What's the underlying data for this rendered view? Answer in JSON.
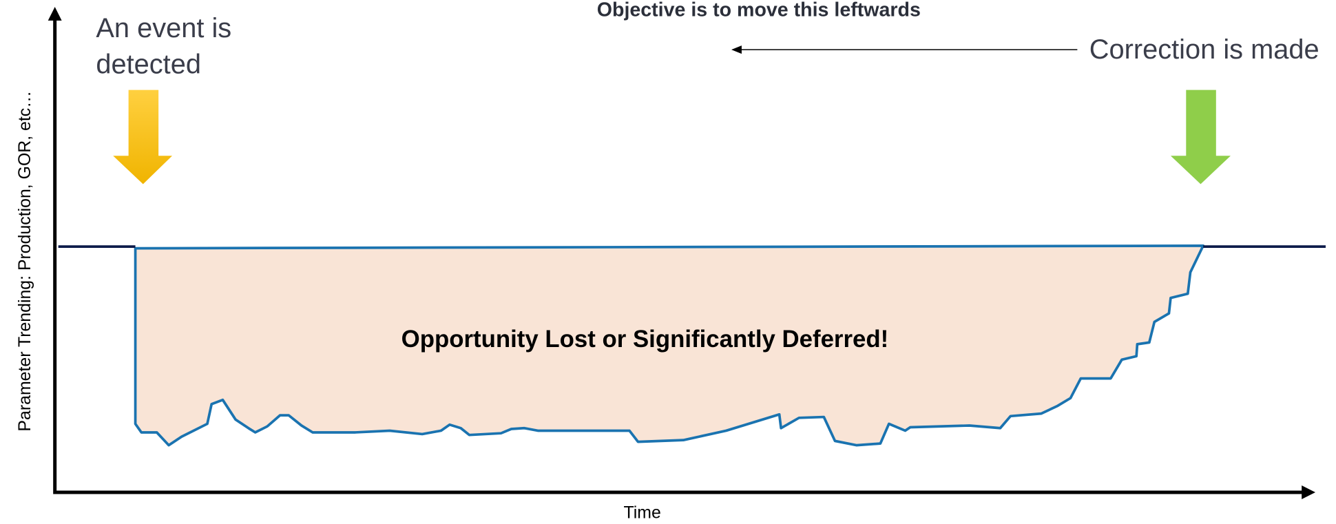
{
  "header": {
    "title": "Objective is to move this leftwards"
  },
  "annotations": {
    "event_lines": [
      "An event is",
      "detected"
    ],
    "correction": "Correction is made",
    "loss": "Opportunity Lost or Significantly Deferred!"
  },
  "axes": {
    "y_label": "Parameter Trending: Production, GOR, etc…",
    "x_label": "Time"
  }
}
